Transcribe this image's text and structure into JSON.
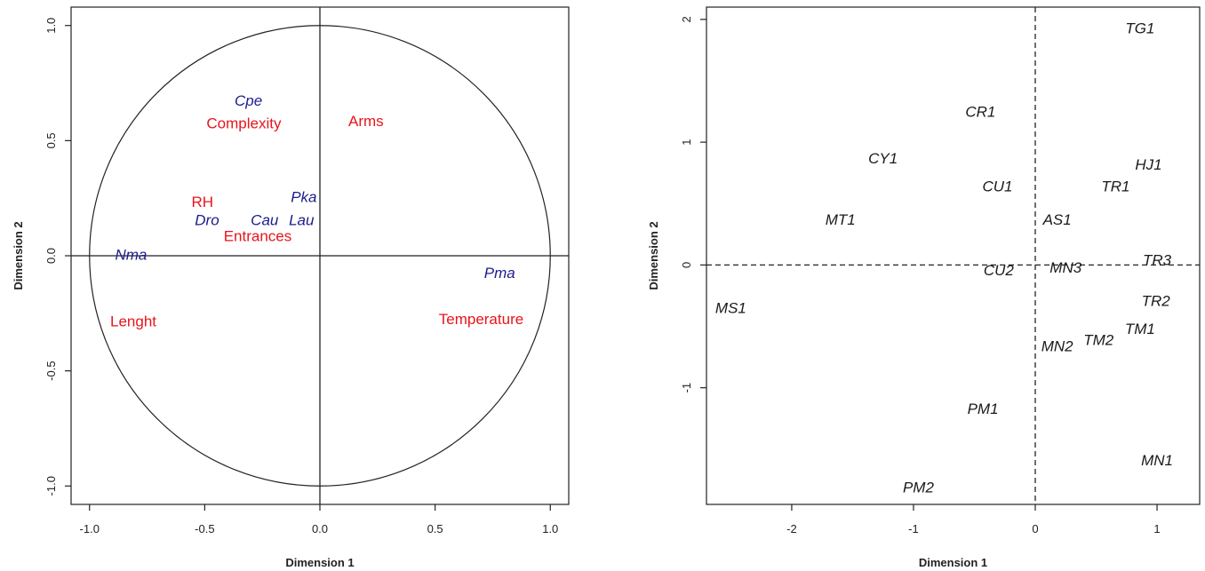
{
  "charts": [
    {
      "type": "scatter",
      "title": "",
      "xlabel": "Dimension  1",
      "ylabel": "Dimension  2",
      "xlim": [
        -1.08,
        1.08
      ],
      "ylim": [
        -1.08,
        1.08
      ],
      "xticks": [
        -1.0,
        -0.5,
        0.0,
        0.5,
        1.0
      ],
      "xtick_labels": [
        "-1.0",
        "-0.5",
        "0.0",
        "0.5",
        "1.0"
      ],
      "yticks": [
        -1.0,
        -0.5,
        0.0,
        0.5,
        1.0
      ],
      "ytick_labels": [
        "-1.0",
        "-0.5",
        "0.0",
        "0.5",
        "1.0"
      ],
      "grid": false,
      "reference_lines": "solid axes at x=0 and y=0",
      "unit_circle": true,
      "series": [
        {
          "color": "#e8141c",
          "italic": false,
          "points": [
            {
              "label": "Complexity",
              "x": -0.33,
              "y": 0.57
            },
            {
              "label": "Arms",
              "x": 0.2,
              "y": 0.58
            },
            {
              "label": "RH",
              "x": -0.51,
              "y": 0.23
            },
            {
              "label": "Entrances",
              "x": -0.27,
              "y": 0.08
            },
            {
              "label": "Lenght",
              "x": -0.81,
              "y": -0.29
            },
            {
              "label": "Temperature",
              "x": 0.7,
              "y": -0.28
            }
          ]
        },
        {
          "color": "#1c1c8c",
          "italic": true,
          "points": [
            {
              "label": "Cpe",
              "x": -0.31,
              "y": 0.67
            },
            {
              "label": "Pka",
              "x": -0.07,
              "y": 0.25
            },
            {
              "label": "Dro",
              "x": -0.49,
              "y": 0.15
            },
            {
              "label": "Cau",
              "x": -0.24,
              "y": 0.15
            },
            {
              "label": "Lau",
              "x": -0.08,
              "y": 0.15
            },
            {
              "label": "Nma",
              "x": -0.82,
              "y": 0.0
            },
            {
              "label": "Pma",
              "x": 0.78,
              "y": -0.08
            }
          ]
        }
      ]
    },
    {
      "type": "scatter",
      "title": "",
      "xlabel": "Dimension  1",
      "ylabel": "Dimension  2",
      "xlim": [
        -2.7,
        1.35
      ],
      "ylim": [
        -1.95,
        2.1
      ],
      "xticks": [
        -2,
        -1,
        0,
        1
      ],
      "xtick_labels": [
        "-2",
        "-1",
        "0",
        "1"
      ],
      "yticks": [
        -1,
        0,
        1,
        2
      ],
      "ytick_labels": [
        "-1",
        "0",
        "1",
        "2"
      ],
      "grid": false,
      "reference_lines": "dashed lines at x=0 and y=0",
      "series": [
        {
          "color": "#1a1a1a",
          "italic": true,
          "points": [
            {
              "label": "TG1",
              "x": 0.86,
              "y": 1.92
            },
            {
              "label": "CR1",
              "x": -0.45,
              "y": 1.24
            },
            {
              "label": "CY1",
              "x": -1.25,
              "y": 0.86
            },
            {
              "label": "HJ1",
              "x": 0.93,
              "y": 0.81
            },
            {
              "label": "CU1",
              "x": -0.31,
              "y": 0.63
            },
            {
              "label": "TR1",
              "x": 0.66,
              "y": 0.63
            },
            {
              "label": "AS1",
              "x": 0.18,
              "y": 0.36
            },
            {
              "label": "MT1",
              "x": -1.6,
              "y": 0.36
            },
            {
              "label": "TR3",
              "x": 1.0,
              "y": 0.03
            },
            {
              "label": "MN3",
              "x": 0.25,
              "y": -0.03
            },
            {
              "label": "CU2",
              "x": -0.3,
              "y": -0.05
            },
            {
              "label": "TR2",
              "x": 0.99,
              "y": -0.3
            },
            {
              "label": "MS1",
              "x": -2.5,
              "y": -0.36
            },
            {
              "label": "TM1",
              "x": 0.86,
              "y": -0.53
            },
            {
              "label": "TM2",
              "x": 0.52,
              "y": -0.62
            },
            {
              "label": "MN2",
              "x": 0.18,
              "y": -0.67
            },
            {
              "label": "PM1",
              "x": -0.43,
              "y": -1.18
            },
            {
              "label": "MN1",
              "x": 1.0,
              "y": -1.6
            },
            {
              "label": "PM2",
              "x": -0.96,
              "y": -1.82
            }
          ]
        }
      ]
    }
  ]
}
